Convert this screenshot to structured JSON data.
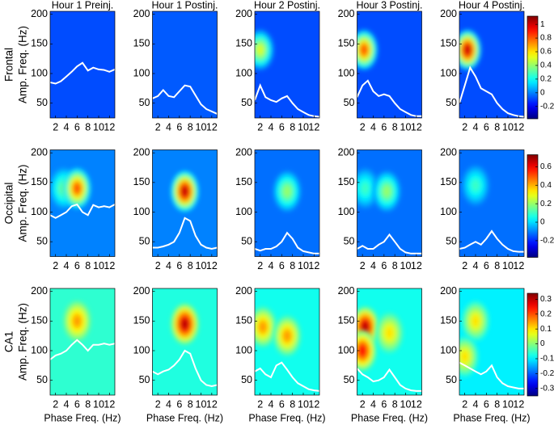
{
  "chart_data": {
    "type": "heatmap",
    "xlabel": "Phase Freq. (Hz)",
    "ylabel": "Amp. Freq. (Hz)",
    "columns": [
      "Hour 1 Preinj.",
      "Hour 1 Postinj.",
      "Hour 2 Postinj.",
      "Hour 3 Postinj.",
      "Hour 4 Postinj."
    ],
    "xlim": [
      1,
      13
    ],
    "xticks": [
      2,
      4,
      6,
      8,
      10,
      12
    ],
    "ylim": [
      25,
      205
    ],
    "yticks": [
      50,
      100,
      150,
      200
    ],
    "line_color": "#ffffff",
    "line_x": [
      1,
      2,
      3,
      4,
      5,
      6,
      7,
      8,
      9,
      10,
      11,
      12,
      13
    ],
    "rows": [
      {
        "name": "Frontal",
        "clim": [
          -0.38,
          1.12
        ],
        "cticks": [
          1,
          0.8,
          0.6,
          0.4,
          0.2,
          0,
          -0.2
        ],
        "panels": [
          {
            "background": -0.08,
            "hotspots": [],
            "line": [
              85,
              83,
              87,
              95,
              103,
              112,
              118,
              105,
              110,
              107,
              106,
              103,
              107
            ]
          },
          {
            "background": -0.06,
            "hotspots": [],
            "line": [
              58,
              62,
              72,
              62,
              60,
              70,
              80,
              78,
              63,
              48,
              40,
              36,
              32
            ]
          },
          {
            "background": -0.08,
            "hotspots": [
              {
                "x": 2,
                "y": 140,
                "value": 0.5
              }
            ],
            "line": [
              55,
              80,
              60,
              55,
              52,
              58,
              62,
              50,
              40,
              35,
              30,
              28,
              27
            ]
          },
          {
            "background": -0.08,
            "hotspots": [
              {
                "x": 2.3,
                "y": 140,
                "value": 0.8
              }
            ],
            "line": [
              60,
              80,
              88,
              70,
              62,
              65,
              62,
              50,
              40,
              35,
              30,
              28,
              28
            ]
          },
          {
            "background": -0.08,
            "hotspots": [
              {
                "x": 2.5,
                "y": 140,
                "value": 1
              }
            ],
            "line": [
              50,
              80,
              110,
              95,
              75,
              70,
              65,
              50,
              40,
              33,
              30,
              28,
              27
            ]
          }
        ]
      },
      {
        "name": "Occipital",
        "clim": [
          -0.38,
          0.73
        ],
        "cticks": [
          0.6,
          0.4,
          0.2,
          0,
          -0.2
        ],
        "panels": [
          {
            "background": -0.1,
            "hotspots": [
              {
                "x": 3.5,
                "y": 140,
                "value": 0.15
              },
              {
                "x": 6,
                "y": 140,
                "value": 0.5
              }
            ],
            "line": [
              95,
              90,
              95,
              100,
              110,
              113,
              100,
              95,
              112,
              108,
              110,
              108,
              113
            ]
          },
          {
            "background": -0.1,
            "hotspots": [
              {
                "x": 7,
                "y": 135,
                "value": 0.65
              }
            ],
            "line": [
              40,
              40,
              42,
              45,
              50,
              65,
              90,
              85,
              60,
              45,
              40,
              38,
              40
            ]
          },
          {
            "background": -0.12,
            "hotspots": [
              {
                "x": 7,
                "y": 135,
                "value": 0.2
              }
            ],
            "line": [
              38,
              35,
              38,
              38,
              42,
              50,
              65,
              55,
              40,
              34,
              32,
              30,
              30
            ]
          },
          {
            "background": -0.12,
            "hotspots": [
              {
                "x": 2.5,
                "y": 140,
                "value": 0.1
              },
              {
                "x": 6.5,
                "y": 135,
                "value": 0.2
              }
            ],
            "line": [
              38,
              43,
              38,
              38,
              45,
              50,
              62,
              50,
              38,
              32,
              30,
              30,
              30
            ]
          },
          {
            "background": -0.12,
            "hotspots": [
              {
                "x": 4,
                "y": 145,
                "value": 0.1
              }
            ],
            "line": [
              38,
              40,
              45,
              50,
              45,
              55,
              68,
              55,
              45,
              38,
              34,
              33,
              33
            ]
          }
        ]
      },
      {
        "name": "CA1",
        "clim": [
          -0.35,
          0.34
        ],
        "cticks": [
          0.3,
          0.2,
          0.1,
          0,
          -0.1,
          -0.2,
          -0.3
        ],
        "panels": [
          {
            "background": -0.06,
            "hotspots": [
              {
                "x": 6,
                "y": 150,
                "value": 0.15
              }
            ],
            "line": [
              85,
              92,
              95,
              100,
              110,
              118,
              110,
              100,
              110,
              110,
              112,
              110,
              112
            ]
          },
          {
            "background": -0.07,
            "hotspots": [
              {
                "x": 7,
                "y": 145,
                "value": 0.3
              }
            ],
            "line": [
              65,
              60,
              65,
              68,
              75,
              85,
              100,
              95,
              70,
              50,
              42,
              40,
              42
            ]
          },
          {
            "background": -0.08,
            "hotspots": [
              {
                "x": 2.5,
                "y": 140,
                "value": 0.15
              },
              {
                "x": 7,
                "y": 125,
                "value": 0.15
              }
            ],
            "line": [
              65,
              70,
              60,
              55,
              75,
              80,
              68,
              55,
              45,
              40,
              35,
              33,
              32
            ]
          },
          {
            "background": -0.08,
            "hotspots": [
              {
                "x": 2.5,
                "y": 140,
                "value": 0.3
              },
              {
                "x": 2,
                "y": 100,
                "value": 0.25
              },
              {
                "x": 7,
                "y": 130,
                "value": 0.1
              }
            ],
            "line": [
              70,
              60,
              55,
              48,
              50,
              55,
              68,
              55,
              42,
              36,
              33,
              32,
              32
            ]
          },
          {
            "background": -0.1,
            "hotspots": [
              {
                "x": 4,
                "y": 150,
                "value": 0.1
              },
              {
                "x": 2,
                "y": 90,
                "value": 0.1
              }
            ],
            "line": [
              80,
              75,
              70,
              65,
              60,
              65,
              75,
              55,
              45,
              40,
              38,
              36,
              36
            ]
          }
        ]
      }
    ]
  }
}
